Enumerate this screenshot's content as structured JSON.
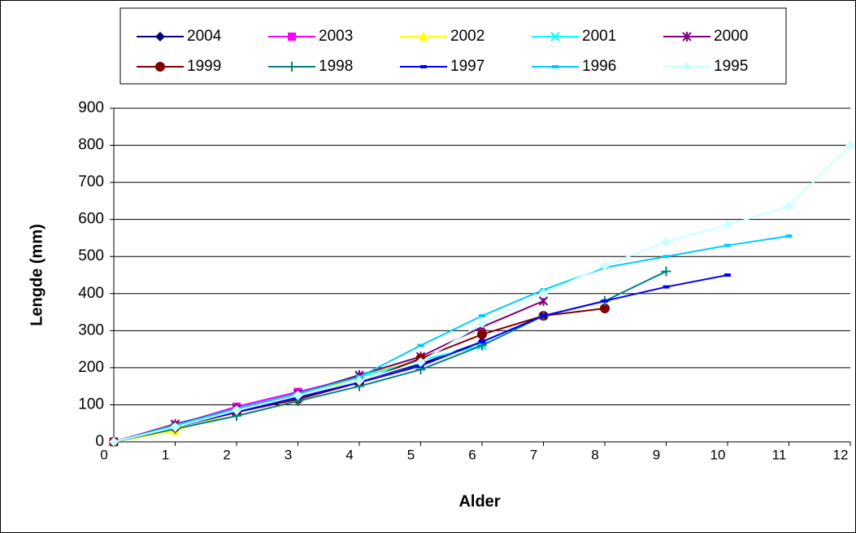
{
  "chart_data": {
    "type": "line",
    "x_label": "Alder",
    "y_label": "Lengde (mm)",
    "x": [
      0,
      1,
      2,
      3,
      4,
      5,
      6,
      7,
      8,
      9,
      10,
      11,
      12
    ],
    "xlim": [
      0,
      12
    ],
    "xticks": [
      0,
      1,
      2,
      3,
      4,
      5,
      6,
      7,
      8,
      9,
      10,
      11,
      12
    ],
    "ylim": [
      0,
      900
    ],
    "yticks": [
      0,
      100,
      200,
      300,
      400,
      500,
      600,
      700,
      800,
      900
    ],
    "grid": true,
    "legend": "top",
    "series": [
      {
        "name": "2004",
        "color": "#000080",
        "marker": "diamond",
        "values": [
          0,
          40,
          85,
          125,
          165,
          210,
          270,
          340,
          null,
          null,
          null,
          null,
          null
        ]
      },
      {
        "name": "2003",
        "color": "#ff00ff",
        "marker": "square",
        "values": [
          0,
          45,
          95,
          135,
          175,
          null,
          null,
          null,
          null,
          null,
          null,
          null,
          null
        ]
      },
      {
        "name": "2002",
        "color": "#ffff00",
        "marker": "triangle",
        "values": [
          0,
          30,
          80,
          120,
          175,
          230,
          null,
          null,
          null,
          null,
          null,
          null,
          null
        ]
      },
      {
        "name": "2001",
        "color": "#00ffff",
        "marker": "x",
        "values": [
          0,
          45,
          90,
          130,
          175,
          220,
          260,
          null,
          null,
          null,
          null,
          null,
          null
        ]
      },
      {
        "name": "2000",
        "color": "#800080",
        "marker": "star",
        "values": [
          0,
          48,
          90,
          130,
          180,
          230,
          310,
          380,
          null,
          null,
          null,
          null,
          null
        ]
      },
      {
        "name": "1999",
        "color": "#800000",
        "marker": "circle",
        "values": [
          0,
          40,
          80,
          115,
          160,
          225,
          290,
          340,
          360,
          null,
          null,
          null,
          null
        ]
      },
      {
        "name": "1998",
        "color": "#008080",
        "marker": "plus",
        "values": [
          0,
          35,
          70,
          110,
          150,
          195,
          260,
          340,
          380,
          460,
          null,
          null,
          null
        ]
      },
      {
        "name": "1997",
        "color": "#0000ff",
        "marker": "dash",
        "values": [
          0,
          40,
          80,
          120,
          160,
          205,
          270,
          340,
          380,
          418,
          450,
          null,
          null
        ]
      },
      {
        "name": "1996",
        "color": "#00ccff",
        "marker": "dash",
        "values": [
          0,
          45,
          90,
          130,
          175,
          260,
          340,
          410,
          470,
          500,
          530,
          555,
          null
        ]
      },
      {
        "name": "1995",
        "color": "#ccffff",
        "marker": "diamond",
        "values": [
          0,
          40,
          85,
          125,
          165,
          215,
          320,
          400,
          475,
          540,
          585,
          635,
          800
        ]
      }
    ]
  }
}
